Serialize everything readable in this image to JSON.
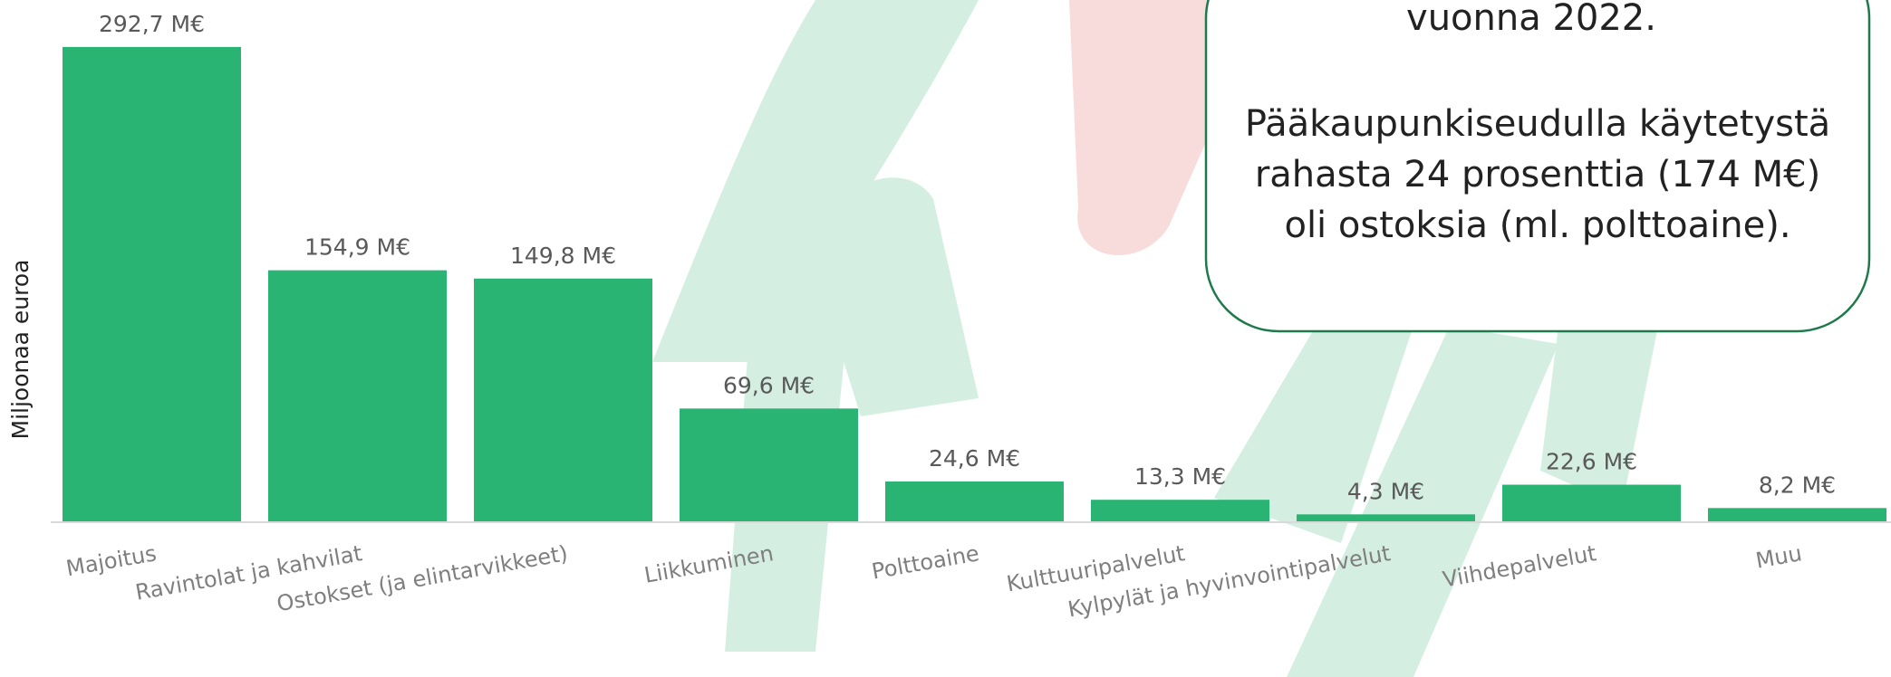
{
  "chart_data": {
    "type": "bar",
    "y_label": "Miljoonaa euroa",
    "categories": [
      "Majoitus",
      "Ravintolat ja kahvilat",
      "Ostokset (ja elintarvikkeet)",
      "Liikkuminen",
      "Polttoaine",
      "Kulttuuripalvelut",
      "Kylpylät ja hyvinvointipalvelut",
      "Viihdepalvelut",
      "Muu"
    ],
    "values": [
      292.7,
      154.9,
      149.8,
      69.6,
      24.6,
      13.3,
      4.3,
      22.6,
      8.2
    ],
    "value_labels": [
      "292,7 M€",
      "154,9 M€",
      "149,8 M€",
      "69,6 M€",
      "24,6 M€",
      "13,3 M€",
      "4,3 M€",
      "22,6 M€",
      "8,2 M€"
    ],
    "color": "#29b473",
    "ylim": [
      0,
      320
    ],
    "annotations": [
      "vuonna 2022.",
      "Pääkaupunkiseudulla käytetystä",
      "rahasta 24 prosenttia (174 M€)",
      "oli ostoksia (ml. polttoaine)."
    ]
  }
}
